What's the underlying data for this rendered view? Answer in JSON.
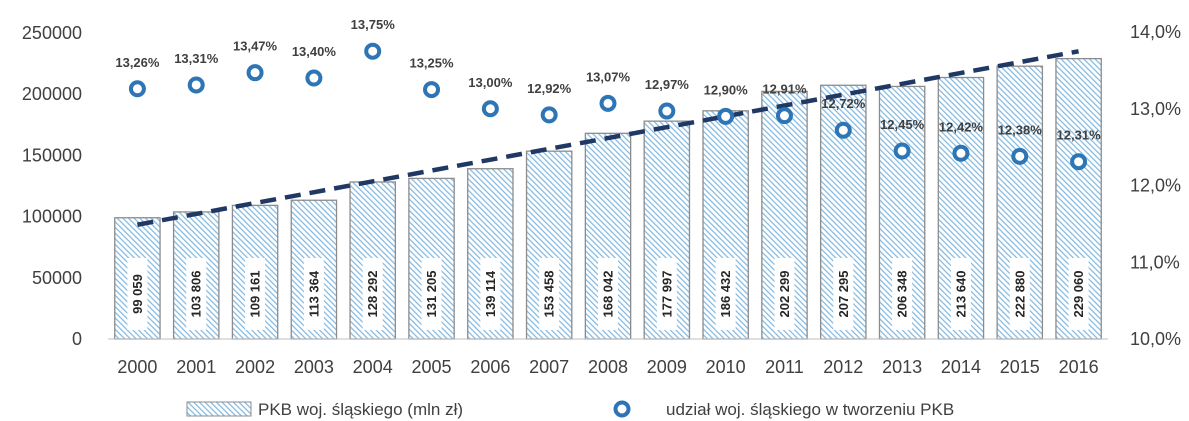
{
  "chart_data": {
    "type": "bar",
    "categories": [
      "2000",
      "2001",
      "2002",
      "2003",
      "2004",
      "2005",
      "2006",
      "2007",
      "2008",
      "2009",
      "2010",
      "2011",
      "2012",
      "2013",
      "2014",
      "2015",
      "2016"
    ],
    "series": [
      {
        "name": "PKB woj. śląskiego (mln zł)",
        "type": "bar",
        "axis": "left",
        "values": [
          99059,
          103806,
          109161,
          113364,
          128292,
          131205,
          139114,
          153458,
          168042,
          177997,
          186432,
          202299,
          207295,
          206348,
          213640,
          222880,
          229060
        ],
        "labels": [
          "99 059",
          "103 806",
          "109 161",
          "113 364",
          "128 292",
          "131 205",
          "139 114",
          "153 458",
          "168 042",
          "177 997",
          "186 432",
          "202 299",
          "207 295",
          "206 348",
          "213 640",
          "222 880",
          "229 060"
        ],
        "color": "#9ecae8"
      },
      {
        "name": "udział woj. śląskiego w tworzeniu PKB",
        "type": "scatter",
        "axis": "right",
        "values": [
          13.26,
          13.31,
          13.47,
          13.4,
          13.75,
          13.25,
          13.0,
          12.92,
          13.07,
          12.97,
          12.9,
          12.91,
          12.72,
          12.45,
          12.42,
          12.38,
          12.31
        ],
        "labels": [
          "13,26%",
          "13,31%",
          "13,47%",
          "13,40%",
          "13,75%",
          "13,25%",
          "13,00%",
          "12,92%",
          "13,07%",
          "12,97%",
          "12,90%",
          "12,91%",
          "12,72%",
          "12,45%",
          "12,42%",
          "12,38%",
          "12,31%"
        ],
        "color": "#2e75b6"
      }
    ],
    "trendline": {
      "series": "PKB woj. śląskiego (mln zł)",
      "style": "dashed",
      "color": "#1f3864"
    },
    "y_left": {
      "min": 0,
      "max": 250000,
      "ticks": [
        0,
        50000,
        100000,
        150000,
        200000,
        250000
      ],
      "tick_labels": [
        "0",
        "50000",
        "100000",
        "150000",
        "200000",
        "250000"
      ]
    },
    "y_right": {
      "min": 10.0,
      "max": 14.0,
      "ticks": [
        10,
        11,
        12,
        13,
        14
      ],
      "tick_labels": [
        "10,0%",
        "11,0%",
        "12,0%",
        "13,0%",
        "14,0%"
      ]
    },
    "legend": {
      "position": "bottom",
      "items": [
        "PKB woj. śląskiego (mln zł)",
        "udział woj. śląskiego w tworzeniu PKB"
      ]
    },
    "grid": false
  }
}
